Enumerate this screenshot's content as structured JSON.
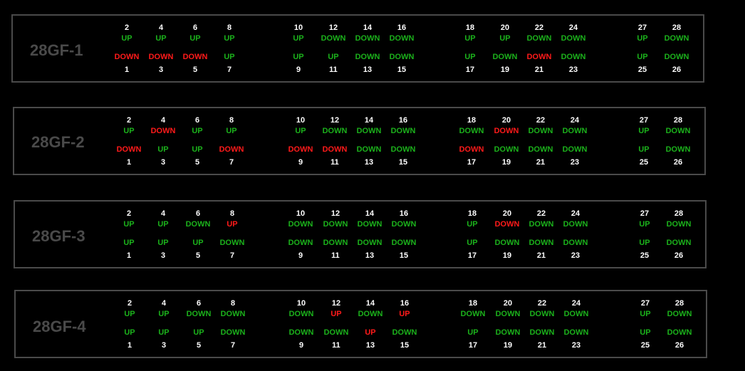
{
  "colors": {
    "green": "#1bb11b",
    "red": "#ff1a1a",
    "number": "#ffffff",
    "border": "#4a4a4a"
  },
  "panels": [
    {
      "label": "28GF-1",
      "top": [
        {
          "num": "2",
          "status": "UP",
          "color": "green"
        },
        {
          "num": "4",
          "status": "UP",
          "color": "green"
        },
        {
          "num": "6",
          "status": "UP",
          "color": "green"
        },
        {
          "num": "8",
          "status": "UP",
          "color": "green"
        },
        {
          "num": "10",
          "status": "UP",
          "color": "green"
        },
        {
          "num": "12",
          "status": "DOWN",
          "color": "green"
        },
        {
          "num": "14",
          "status": "DOWN",
          "color": "green"
        },
        {
          "num": "16",
          "status": "DOWN",
          "color": "green"
        },
        {
          "num": "18",
          "status": "UP",
          "color": "green"
        },
        {
          "num": "20",
          "status": "UP",
          "color": "green"
        },
        {
          "num": "22",
          "status": "DOWN",
          "color": "green"
        },
        {
          "num": "24",
          "status": "DOWN",
          "color": "green"
        },
        {
          "num": "27",
          "status": "UP",
          "color": "green"
        },
        {
          "num": "28",
          "status": "DOWN",
          "color": "green"
        }
      ],
      "bottom": [
        {
          "num": "1",
          "status": "DOWN",
          "color": "red"
        },
        {
          "num": "3",
          "status": "DOWN",
          "color": "red"
        },
        {
          "num": "5",
          "status": "DOWN",
          "color": "red"
        },
        {
          "num": "7",
          "status": "UP",
          "color": "green"
        },
        {
          "num": "9",
          "status": "UP",
          "color": "green"
        },
        {
          "num": "11",
          "status": "UP",
          "color": "green"
        },
        {
          "num": "13",
          "status": "DOWN",
          "color": "green"
        },
        {
          "num": "15",
          "status": "DOWN",
          "color": "green"
        },
        {
          "num": "17",
          "status": "UP",
          "color": "green"
        },
        {
          "num": "19",
          "status": "DOWN",
          "color": "green"
        },
        {
          "num": "21",
          "status": "DOWN",
          "color": "red"
        },
        {
          "num": "23",
          "status": "DOWN",
          "color": "green"
        },
        {
          "num": "25",
          "status": "UP",
          "color": "green"
        },
        {
          "num": "26",
          "status": "DOWN",
          "color": "green"
        }
      ]
    },
    {
      "label": "28GF-2",
      "top": [
        {
          "num": "2",
          "status": "UP",
          "color": "green"
        },
        {
          "num": "4",
          "status": "DOWN",
          "color": "red"
        },
        {
          "num": "6",
          "status": "UP",
          "color": "green"
        },
        {
          "num": "8",
          "status": "UP",
          "color": "green"
        },
        {
          "num": "10",
          "status": "UP",
          "color": "green"
        },
        {
          "num": "12",
          "status": "DOWN",
          "color": "green"
        },
        {
          "num": "14",
          "status": "DOWN",
          "color": "green"
        },
        {
          "num": "16",
          "status": "DOWN",
          "color": "green"
        },
        {
          "num": "18",
          "status": "DOWN",
          "color": "green"
        },
        {
          "num": "20",
          "status": "DOWN",
          "color": "red"
        },
        {
          "num": "22",
          "status": "DOWN",
          "color": "green"
        },
        {
          "num": "24",
          "status": "DOWN",
          "color": "green"
        },
        {
          "num": "27",
          "status": "UP",
          "color": "green"
        },
        {
          "num": "28",
          "status": "DOWN",
          "color": "green"
        }
      ],
      "bottom": [
        {
          "num": "1",
          "status": "DOWN",
          "color": "red"
        },
        {
          "num": "3",
          "status": "UP",
          "color": "green"
        },
        {
          "num": "5",
          "status": "UP",
          "color": "green"
        },
        {
          "num": "7",
          "status": "DOWN",
          "color": "red"
        },
        {
          "num": "9",
          "status": "DOWN",
          "color": "red"
        },
        {
          "num": "11",
          "status": "DOWN",
          "color": "red"
        },
        {
          "num": "13",
          "status": "DOWN",
          "color": "green"
        },
        {
          "num": "15",
          "status": "DOWN",
          "color": "green"
        },
        {
          "num": "17",
          "status": "DOWN",
          "color": "red"
        },
        {
          "num": "19",
          "status": "DOWN",
          "color": "green"
        },
        {
          "num": "21",
          "status": "DOWN",
          "color": "green"
        },
        {
          "num": "23",
          "status": "DOWN",
          "color": "green"
        },
        {
          "num": "25",
          "status": "UP",
          "color": "green"
        },
        {
          "num": "26",
          "status": "DOWN",
          "color": "green"
        }
      ]
    },
    {
      "label": "28GF-3",
      "top": [
        {
          "num": "2",
          "status": "UP",
          "color": "green"
        },
        {
          "num": "4",
          "status": "UP",
          "color": "green"
        },
        {
          "num": "6",
          "status": "DOWN",
          "color": "green"
        },
        {
          "num": "8",
          "status": "UP",
          "color": "red"
        },
        {
          "num": "10",
          "status": "DOWN",
          "color": "green"
        },
        {
          "num": "12",
          "status": "DOWN",
          "color": "green"
        },
        {
          "num": "14",
          "status": "DOWN",
          "color": "green"
        },
        {
          "num": "16",
          "status": "DOWN",
          "color": "green"
        },
        {
          "num": "18",
          "status": "UP",
          "color": "green"
        },
        {
          "num": "20",
          "status": "DOWN",
          "color": "red"
        },
        {
          "num": "22",
          "status": "DOWN",
          "color": "green"
        },
        {
          "num": "24",
          "status": "DOWN",
          "color": "green"
        },
        {
          "num": "27",
          "status": "UP",
          "color": "green"
        },
        {
          "num": "28",
          "status": "DOWN",
          "color": "green"
        }
      ],
      "bottom": [
        {
          "num": "1",
          "status": "UP",
          "color": "green"
        },
        {
          "num": "3",
          "status": "UP",
          "color": "green"
        },
        {
          "num": "5",
          "status": "UP",
          "color": "green"
        },
        {
          "num": "7",
          "status": "DOWN",
          "color": "green"
        },
        {
          "num": "9",
          "status": "DOWN",
          "color": "green"
        },
        {
          "num": "11",
          "status": "DOWN",
          "color": "green"
        },
        {
          "num": "13",
          "status": "DOWN",
          "color": "green"
        },
        {
          "num": "15",
          "status": "DOWN",
          "color": "green"
        },
        {
          "num": "17",
          "status": "UP",
          "color": "green"
        },
        {
          "num": "19",
          "status": "DOWN",
          "color": "green"
        },
        {
          "num": "21",
          "status": "DOWN",
          "color": "green"
        },
        {
          "num": "23",
          "status": "DOWN",
          "color": "green"
        },
        {
          "num": "25",
          "status": "UP",
          "color": "green"
        },
        {
          "num": "26",
          "status": "DOWN",
          "color": "green"
        }
      ]
    },
    {
      "label": "28GF-4",
      "top": [
        {
          "num": "2",
          "status": "UP",
          "color": "green"
        },
        {
          "num": "4",
          "status": "UP",
          "color": "green"
        },
        {
          "num": "6",
          "status": "DOWN",
          "color": "green"
        },
        {
          "num": "8",
          "status": "DOWN",
          "color": "green"
        },
        {
          "num": "10",
          "status": "DOWN",
          "color": "green"
        },
        {
          "num": "12",
          "status": "UP",
          "color": "red"
        },
        {
          "num": "14",
          "status": "DOWN",
          "color": "green"
        },
        {
          "num": "16",
          "status": "UP",
          "color": "red"
        },
        {
          "num": "18",
          "status": "DOWN",
          "color": "green"
        },
        {
          "num": "20",
          "status": "DOWN",
          "color": "green"
        },
        {
          "num": "22",
          "status": "DOWN",
          "color": "green"
        },
        {
          "num": "24",
          "status": "DOWN",
          "color": "green"
        },
        {
          "num": "27",
          "status": "UP",
          "color": "green"
        },
        {
          "num": "28",
          "status": "DOWN",
          "color": "green"
        }
      ],
      "bottom": [
        {
          "num": "1",
          "status": "UP",
          "color": "green"
        },
        {
          "num": "3",
          "status": "UP",
          "color": "green"
        },
        {
          "num": "5",
          "status": "UP",
          "color": "green"
        },
        {
          "num": "7",
          "status": "DOWN",
          "color": "green"
        },
        {
          "num": "9",
          "status": "DOWN",
          "color": "green"
        },
        {
          "num": "11",
          "status": "DOWN",
          "color": "green"
        },
        {
          "num": "13",
          "status": "UP",
          "color": "red"
        },
        {
          "num": "15",
          "status": "DOWN",
          "color": "green"
        },
        {
          "num": "17",
          "status": "UP",
          "color": "green"
        },
        {
          "num": "19",
          "status": "DOWN",
          "color": "green"
        },
        {
          "num": "21",
          "status": "DOWN",
          "color": "green"
        },
        {
          "num": "23",
          "status": "DOWN",
          "color": "green"
        },
        {
          "num": "25",
          "status": "UP",
          "color": "green"
        },
        {
          "num": "26",
          "status": "DOWN",
          "color": "green"
        }
      ]
    }
  ]
}
